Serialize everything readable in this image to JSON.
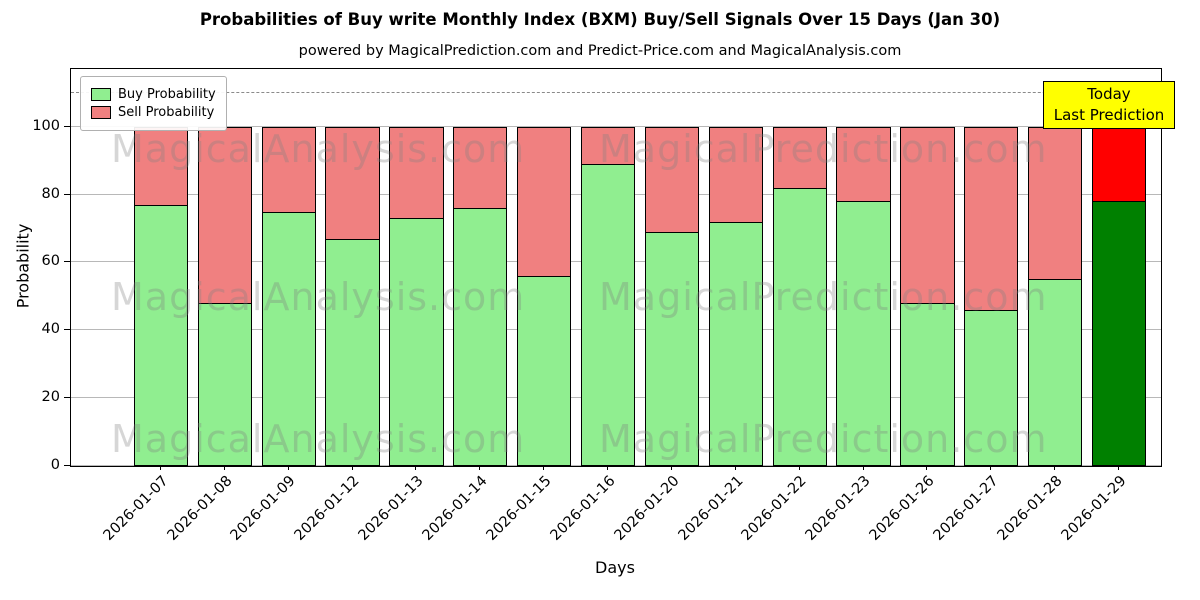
{
  "title": "Probabilities of Buy write Monthly Index (BXM) Buy/Sell Signals Over 15 Days (Jan 30)",
  "subtitle": "powered by MagicalPrediction.com and Predict-Price.com and MagicalAnalysis.com",
  "axes": {
    "xlabel": "Days",
    "ylabel": "Probability"
  },
  "legend": {
    "items": [
      {
        "label": "Buy Probability",
        "color": "#90ee90"
      },
      {
        "label": "Sell Probability",
        "color": "#f08080"
      }
    ]
  },
  "annotation": {
    "lines": [
      "Today",
      "Last Prediction"
    ],
    "bg_color": "#ffff00"
  },
  "watermarks": [
    "MagicalAnalysis.com",
    "MagicalPrediction.com"
  ],
  "chart_data": {
    "type": "bar",
    "stacked": true,
    "title": "Probabilities of Buy write Monthly Index (BXM) Buy/Sell Signals Over 15 Days (Jan 30)",
    "xlabel": "Days",
    "ylabel": "Probability",
    "ylim": [
      0,
      117
    ],
    "yticks": [
      0,
      20,
      40,
      60,
      80,
      100
    ],
    "grid": true,
    "dashed_line_y": 110,
    "legend_position": "upper left",
    "categories": [
      "2026-01-07",
      "2026-01-08",
      "2026-01-09",
      "2026-01-12",
      "2026-01-13",
      "2026-01-14",
      "2026-01-15",
      "2026-01-16",
      "2026-01-20",
      "2026-01-21",
      "2026-01-22",
      "2026-01-23",
      "2026-01-26",
      "2026-01-27",
      "2026-01-28",
      "2026-01-29"
    ],
    "series": [
      {
        "name": "Buy Probability",
        "color": "#90ee90",
        "values": [
          77,
          48,
          75,
          67,
          73,
          76,
          56,
          89,
          69,
          72,
          82,
          78,
          48,
          46,
          55,
          78
        ]
      },
      {
        "name": "Sell Probability",
        "color": "#f08080",
        "values": [
          23,
          52,
          25,
          33,
          27,
          24,
          44,
          11,
          31,
          28,
          18,
          22,
          52,
          54,
          45,
          22
        ]
      }
    ],
    "today_index": 15,
    "today_colors": {
      "buy": "#008000",
      "sell": "#ff0000"
    }
  }
}
